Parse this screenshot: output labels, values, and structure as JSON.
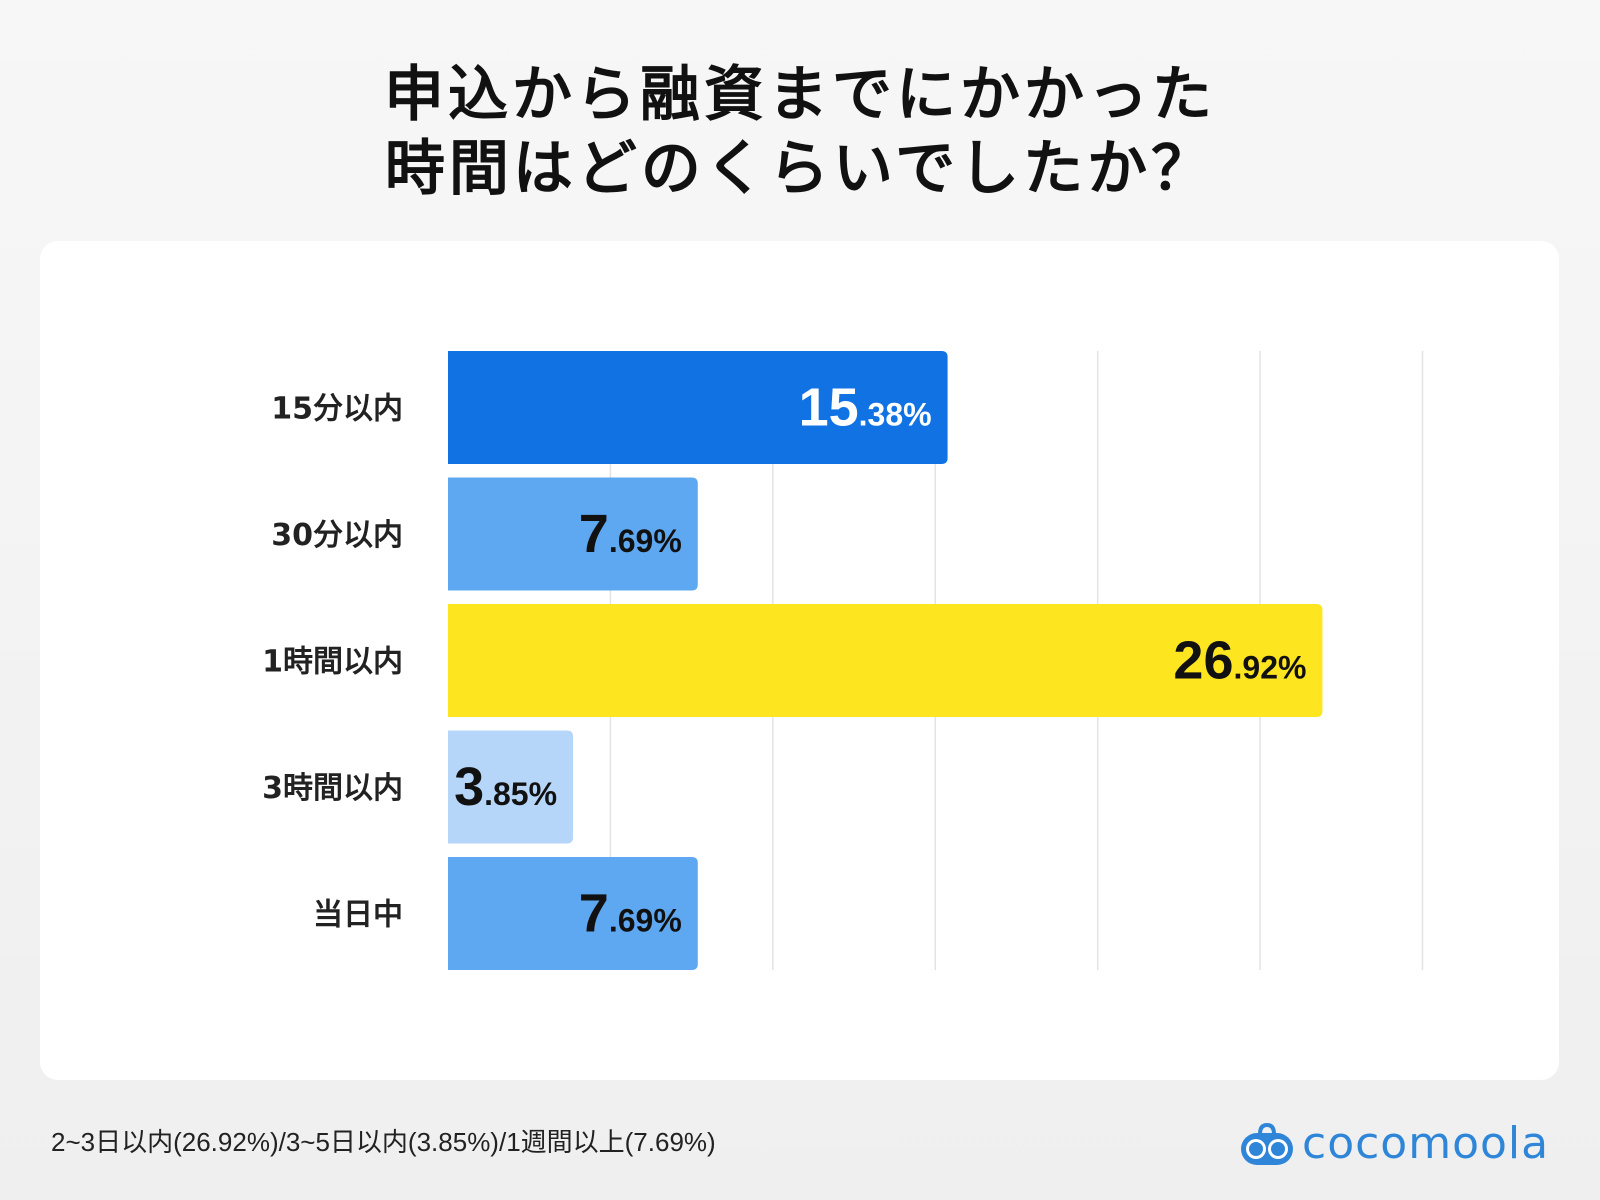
{
  "title_lines": [
    "申込から融資までにかかった",
    "時間はどのくらいでしたか？"
  ],
  "chart_data": {
    "type": "bar",
    "orientation": "horizontal",
    "title": "申込から融資までにかかった時間はどのくらいでしたか？",
    "categories": [
      "15分以内",
      "30分以内",
      "1時間以内",
      "3時間以内",
      "当日中"
    ],
    "values": [
      15.38,
      7.69,
      26.92,
      3.85,
      7.69
    ],
    "value_labels": [
      "15.38%",
      "7.69%",
      "26.92%",
      "3.85%",
      "7.69%"
    ],
    "bar_colors": [
      "#1172e3",
      "#5ea8f2",
      "#fde51f",
      "#b5d6f8",
      "#5ea8f2"
    ],
    "label_colors": [
      "#ffffff",
      "#111111",
      "#111111",
      "#111111",
      "#111111"
    ],
    "xlim": [
      0,
      30
    ],
    "grid_step": 5,
    "grid": true,
    "x_tick_labels_shown": false
  },
  "footnote": "2~3日以内(26.92%)/3~5日以内(3.85%)/1週間以上(7.69%)",
  "logo": {
    "text": "cocomoola",
    "color": "#2f86d8"
  }
}
